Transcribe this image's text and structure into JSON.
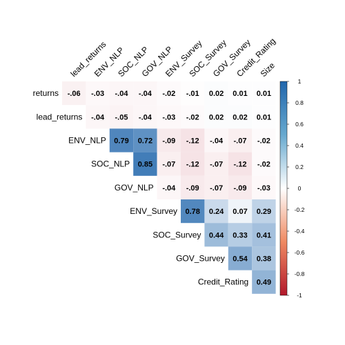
{
  "chart_data": {
    "type": "heatmap",
    "subtype": "upper-triangular correlation matrix",
    "row_labels": [
      "returns",
      "lead_returns",
      "ENV_NLP",
      "SOC_NLP",
      "GOV_NLP",
      "ENV_Survey",
      "SOC_Survey",
      "GOV_Survey",
      "Credit_Rating"
    ],
    "col_labels": [
      "lead_returns",
      "ENV_NLP",
      "SOC_NLP",
      "GOV_NLP",
      "ENV_Survey",
      "SOC_Survey",
      "GOV_Survey",
      "Credit_Rating",
      "Size"
    ],
    "values": [
      [
        -0.06,
        -0.03,
        -0.04,
        -0.04,
        -0.02,
        -0.01,
        0.02,
        0.01,
        0.01
      ],
      [
        null,
        -0.04,
        -0.05,
        -0.04,
        -0.03,
        -0.02,
        0.02,
        0.02,
        0.01
      ],
      [
        null,
        null,
        0.79,
        0.72,
        -0.09,
        -0.12,
        -0.04,
        -0.07,
        -0.02
      ],
      [
        null,
        null,
        null,
        0.85,
        -0.07,
        -0.12,
        -0.07,
        -0.12,
        -0.02
      ],
      [
        null,
        null,
        null,
        null,
        -0.04,
        -0.09,
        -0.07,
        -0.09,
        -0.03
      ],
      [
        null,
        null,
        null,
        null,
        null,
        0.78,
        0.24,
        0.07,
        0.29
      ],
      [
        null,
        null,
        null,
        null,
        null,
        null,
        0.44,
        0.33,
        0.41
      ],
      [
        null,
        null,
        null,
        null,
        null,
        null,
        null,
        0.54,
        0.38
      ],
      [
        null,
        null,
        null,
        null,
        null,
        null,
        null,
        null,
        0.49
      ]
    ],
    "value_format": "2 decimals, leading zero dropped for negatives",
    "color_scale": {
      "min": -1,
      "max": 1,
      "low_color": "#b2182b",
      "mid_color": "#ffffff",
      "high_color": "#2166ac",
      "ticks": [
        "1",
        "0.8",
        "0.6",
        "0.4",
        "0.2",
        "0",
        "-0.2",
        "-0.4",
        "-0.6",
        "-0.8",
        "-1"
      ]
    },
    "legend_position": "right",
    "title": "",
    "grid": false
  }
}
